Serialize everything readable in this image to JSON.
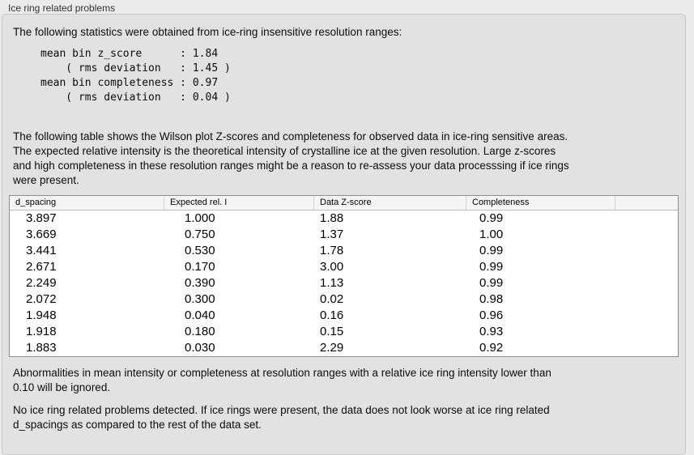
{
  "panel": {
    "title": "Ice ring related problems"
  },
  "intro": "The following statistics were obtained from ice-ring insensitive resolution ranges:",
  "stats_block": "mean bin z_score      : 1.84\n    ( rms deviation   : 1.45 )\nmean bin completeness : 0.97\n    ( rms deviation   : 0.04 )",
  "description": "The following table shows the Wilson plot Z-scores and completeness for observed data in ice-ring sensitive areas.\nThe expected relative intensity is the theoretical intensity of crystalline ice at the given resolution. Large z-scores\nand high completeness in these resolution ranges might be a reason to re-assess your data processsing if ice rings\nwere present.",
  "table": {
    "columns": [
      "d_spacing",
      "Expected rel. I",
      "Data Z-score",
      "Completeness"
    ],
    "rows": [
      [
        "3.897",
        "1.000",
        "1.88",
        "0.99"
      ],
      [
        "3.669",
        "0.750",
        "1.37",
        "1.00"
      ],
      [
        "3.441",
        "0.530",
        "1.78",
        "0.99"
      ],
      [
        "2.671",
        "0.170",
        "3.00",
        "0.99"
      ],
      [
        "2.249",
        "0.390",
        "1.13",
        "0.99"
      ],
      [
        "2.072",
        "0.300",
        "0.02",
        "0.98"
      ],
      [
        "1.948",
        "0.040",
        "0.16",
        "0.96"
      ],
      [
        "1.918",
        "0.180",
        "0.15",
        "0.93"
      ],
      [
        "1.883",
        "0.030",
        "2.29",
        "0.92"
      ]
    ]
  },
  "note_ignore": "Abnormalities in mean intensity or completeness at resolution ranges with a relative ice ring intensity lower than\n0.10 will be ignored.",
  "conclusion": "No ice ring related problems detected. If ice rings were present, the data does not look worse at ice ring related\nd_spacings as compared to the rest of the data set.",
  "colors": {
    "page_background": "#ebebeb",
    "panel_background": "#e2e2e2",
    "panel_border": "#c8c8c8",
    "table_border": "#8f8f8f",
    "table_header_background": "#f5f5f5",
    "table_body_background": "#ffffff",
    "text": "#0c0c0c"
  }
}
